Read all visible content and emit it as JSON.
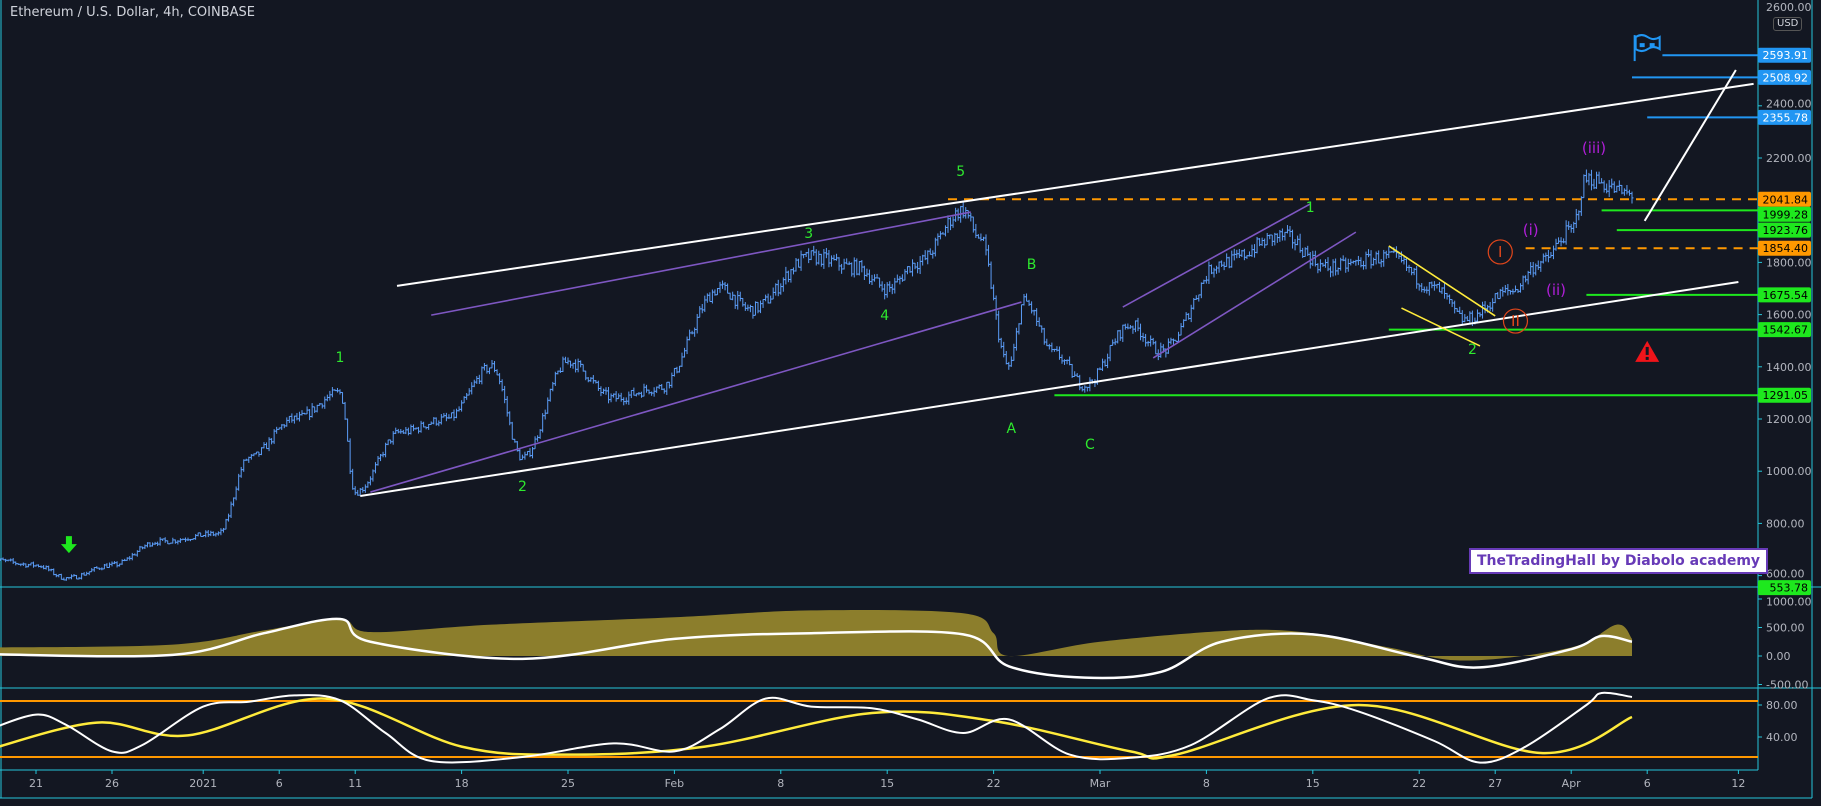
{
  "header": {
    "title": "Ethereum / U.S. Dollar, 4h, COINBASE",
    "currency": "USD"
  },
  "watermark": "TheTradingHall by Diabolo academy",
  "colors": {
    "background": "#131722",
    "candles": "#5b9cf6",
    "border": "#26c6da",
    "green": "#1ee81e",
    "blue": "#2196f3",
    "orange": "#ff9800",
    "purple": "#7e57c2",
    "yellow": "#ffeb3b",
    "wave_purple": "#b01fd8",
    "wave_green": "#2ee82e",
    "circle_red": "#e0461b",
    "olive": "#8c7e2c"
  },
  "chart_data": [
    {
      "type": "candlestick",
      "title": "Ethereum / U.S. Dollar, 4h, COINBASE",
      "yaxis": {
        "ticks": [
          600,
          800,
          1000,
          1200,
          1400,
          1600,
          1800,
          2200,
          2400
        ],
        "tick_labels": [
          "600.00",
          "800.00",
          "1000.00",
          "1200.00",
          "1400.00",
          "1600.00",
          "1800.00",
          "2200.00",
          "2400.00"
        ],
        "top_label": "2600.00"
      },
      "xaxis": {
        "ticks": [
          {
            "date": "2020-12-21",
            "label": "21"
          },
          {
            "date": "2020-12-26",
            "label": "26"
          },
          {
            "date": "2021-01-01",
            "label": "2021"
          },
          {
            "date": "2021-01-06",
            "label": "6"
          },
          {
            "date": "2021-01-11",
            "label": "11"
          },
          {
            "date": "2021-01-18",
            "label": "18"
          },
          {
            "date": "2021-01-25",
            "label": "25"
          },
          {
            "date": "2021-02-01",
            "label": "Feb"
          },
          {
            "date": "2021-02-08",
            "label": "8"
          },
          {
            "date": "2021-02-15",
            "label": "15"
          },
          {
            "date": "2021-02-22",
            "label": "22"
          },
          {
            "date": "2021-03-01",
            "label": "Mar"
          },
          {
            "date": "2021-03-08",
            "label": "8"
          },
          {
            "date": "2021-03-15",
            "label": "15"
          },
          {
            "date": "2021-03-22",
            "label": "22"
          },
          {
            "date": "2021-03-27",
            "label": "27"
          },
          {
            "date": "2021-04-01",
            "label": "Apr"
          },
          {
            "date": "2021-04-06",
            "label": "6"
          },
          {
            "date": "2021-04-12",
            "label": "12"
          }
        ]
      },
      "price_path": [
        [
          "2020-12-18",
          660
        ],
        [
          "2020-12-21",
          640
        ],
        [
          "2020-12-23",
          590
        ],
        [
          "2020-12-26",
          640
        ],
        [
          "2020-12-29",
          730
        ],
        [
          "2021-01-02",
          760
        ],
        [
          "2021-01-04",
          1050
        ],
        [
          "2021-01-07",
          1200
        ],
        [
          "2021-01-10",
          1300
        ],
        [
          "2021-01-11",
          920
        ],
        [
          "2021-01-14",
          1150
        ],
        [
          "2021-01-17",
          1200
        ],
        [
          "2021-01-20",
          1400
        ],
        [
          "2021-01-22",
          1050
        ],
        [
          "2021-01-25",
          1420
        ],
        [
          "2021-01-28",
          1280
        ],
        [
          "2021-01-31",
          1320
        ],
        [
          "2021-02-04",
          1700
        ],
        [
          "2021-02-06",
          1620
        ],
        [
          "2021-02-10",
          1820
        ],
        [
          "2021-02-13",
          1780
        ],
        [
          "2021-02-15",
          1700
        ],
        [
          "2021-02-17",
          1800
        ],
        [
          "2021-02-20",
          2000
        ],
        [
          "2021-02-21",
          1900
        ],
        [
          "2021-02-23",
          1400
        ],
        [
          "2021-02-24",
          1650
        ],
        [
          "2021-02-26",
          1450
        ],
        [
          "2021-02-28",
          1330
        ],
        [
          "2021-03-03",
          1560
        ],
        [
          "2021-03-05",
          1460
        ],
        [
          "2021-03-09",
          1800
        ],
        [
          "2021-03-13",
          1900
        ],
        [
          "2021-03-16",
          1780
        ],
        [
          "2021-03-20",
          1820
        ],
        [
          "2021-03-23",
          1700
        ],
        [
          "2021-03-25",
          1580
        ],
        [
          "2021-03-28",
          1690
        ],
        [
          "2021-03-30",
          1800
        ],
        [
          "2021-04-01",
          1920
        ],
        [
          "2021-04-02",
          2120
        ],
        [
          "2021-04-05",
          2060
        ]
      ]
    },
    {
      "type": "area",
      "yaxis": {
        "ticks": [
          1000,
          500,
          0,
          -500
        ],
        "tick_labels": [
          "1000.00",
          "500.00",
          "0.00",
          "-500.00"
        ]
      },
      "area_series": [
        [
          "2020-12-18",
          150
        ],
        [
          "2020-12-30",
          200
        ],
        [
          "2021-01-05",
          450
        ],
        [
          "2021-01-10",
          650
        ],
        [
          "2021-01-12",
          420
        ],
        [
          "2021-01-20",
          550
        ],
        [
          "2021-02-01",
          680
        ],
        [
          "2021-02-10",
          800
        ],
        [
          "2021-02-20",
          750
        ],
        [
          "2021-02-22",
          400
        ],
        [
          "2021-02-23",
          0
        ],
        [
          "2021-03-01",
          250
        ],
        [
          "2021-03-10",
          450
        ],
        [
          "2021-03-15",
          400
        ],
        [
          "2021-03-20",
          150
        ],
        [
          "2021-03-25",
          -80
        ],
        [
          "2021-04-01",
          150
        ],
        [
          "2021-04-04",
          550
        ],
        [
          "2021-04-05",
          300
        ]
      ],
      "line_series": [
        [
          "2020-12-18",
          30
        ],
        [
          "2020-12-30",
          20
        ],
        [
          "2021-01-05",
          400
        ],
        [
          "2021-01-10",
          650
        ],
        [
          "2021-01-12",
          250
        ],
        [
          "2021-01-22",
          -50
        ],
        [
          "2021-02-01",
          300
        ],
        [
          "2021-02-10",
          400
        ],
        [
          "2021-02-20",
          380
        ],
        [
          "2021-02-23",
          -180
        ],
        [
          "2021-02-28",
          -380
        ],
        [
          "2021-03-05",
          -280
        ],
        [
          "2021-03-09",
          250
        ],
        [
          "2021-03-15",
          380
        ],
        [
          "2021-03-22",
          -20
        ],
        [
          "2021-03-26",
          -200
        ],
        [
          "2021-04-01",
          120
        ],
        [
          "2021-04-03",
          350
        ],
        [
          "2021-04-05",
          250
        ]
      ]
    },
    {
      "type": "line",
      "yaxis": {
        "ticks": [
          80,
          40
        ],
        "tick_labels": [
          "80.00",
          "40.00"
        ],
        "bands": [
          85,
          15
        ]
      },
      "white_series": [
        [
          "2020-12-18",
          50
        ],
        [
          "2020-12-21",
          68
        ],
        [
          "2020-12-23",
          55
        ],
        [
          "2020-12-26",
          22
        ],
        [
          "2020-12-28",
          30
        ],
        [
          "2021-01-01",
          78
        ],
        [
          "2021-01-04",
          84
        ],
        [
          "2021-01-07",
          92
        ],
        [
          "2021-01-10",
          86
        ],
        [
          "2021-01-13",
          45
        ],
        [
          "2021-01-16",
          10
        ],
        [
          "2021-01-22",
          15
        ],
        [
          "2021-01-28",
          32
        ],
        [
          "2021-02-01",
          22
        ],
        [
          "2021-02-04",
          50
        ],
        [
          "2021-02-07",
          88
        ],
        [
          "2021-02-10",
          78
        ],
        [
          "2021-02-14",
          76
        ],
        [
          "2021-02-17",
          62
        ],
        [
          "2021-02-20",
          45
        ],
        [
          "2021-02-23",
          62
        ],
        [
          "2021-02-27",
          18
        ],
        [
          "2021-03-03",
          14
        ],
        [
          "2021-03-07",
          30
        ],
        [
          "2021-03-12",
          88
        ],
        [
          "2021-03-15",
          86
        ],
        [
          "2021-03-18",
          72
        ],
        [
          "2021-03-23",
          35
        ],
        [
          "2021-03-26",
          8
        ],
        [
          "2021-03-29",
          28
        ],
        [
          "2021-04-02",
          80
        ],
        [
          "2021-04-03",
          95
        ],
        [
          "2021-04-05",
          90
        ]
      ],
      "yellow_series": [
        [
          "2020-12-18",
          25
        ],
        [
          "2020-12-25",
          58
        ],
        [
          "2020-12-31",
          42
        ],
        [
          "2021-01-09",
          88
        ],
        [
          "2021-01-18",
          28
        ],
        [
          "2021-01-25",
          18
        ],
        [
          "2021-02-03",
          28
        ],
        [
          "2021-02-14",
          70
        ],
        [
          "2021-02-22",
          60
        ],
        [
          "2021-03-03",
          22
        ],
        [
          "2021-03-06",
          18
        ],
        [
          "2021-03-18",
          80
        ],
        [
          "2021-03-30",
          20
        ],
        [
          "2021-04-05",
          65
        ]
      ]
    }
  ],
  "price_labels": [
    {
      "value": "2593.91",
      "price": 2593.91,
      "kind": "blue",
      "from": "2021-04-07"
    },
    {
      "value": "2508.92",
      "price": 2508.92,
      "kind": "blue",
      "from": "2021-04-05"
    },
    {
      "value": "2355.78",
      "price": 2355.78,
      "kind": "blue",
      "from": "2021-04-06"
    },
    {
      "value": "2041.84",
      "price": 2041.84,
      "kind": "orange",
      "from": "2021-02-19"
    },
    {
      "value": "1999.28",
      "price": 1999.28,
      "kind": "green",
      "from": "2021-04-03"
    },
    {
      "value": "1923.76",
      "price": 1923.76,
      "kind": "green",
      "from": "2021-04-04"
    },
    {
      "value": "1854.40",
      "price": 1854.4,
      "kind": "orange",
      "from": "2021-03-29"
    },
    {
      "value": "1675.54",
      "price": 1675.54,
      "kind": "green",
      "from": "2021-04-02"
    },
    {
      "value": "1542.67",
      "price": 1542.67,
      "kind": "green",
      "from": "2021-03-20"
    },
    {
      "value": "1291.05",
      "price": 1291.05,
      "kind": "green",
      "from": "2021-02-26"
    },
    {
      "value": "553.78",
      "price": 553.78,
      "kind": "green",
      "from": null
    }
  ],
  "trend_lines": [
    {
      "kind": "white",
      "from": [
        "2021-01-13T18:00",
        1710
      ],
      "to": [
        "2021-04-13",
        2484
      ]
    },
    {
      "kind": "white",
      "from": [
        "2021-01-11T08:00",
        905
      ],
      "to": [
        "2021-04-12",
        1725
      ]
    },
    {
      "kind": "white",
      "from": [
        "2021-04-05T20:00",
        1959
      ],
      "to": [
        "2021-04-11T20:00",
        2537
      ]
    },
    {
      "kind": "purple",
      "from": [
        "2021-01-16",
        1598
      ],
      "to": [
        "2021-02-20T12:00",
        1993
      ]
    },
    {
      "kind": "purple",
      "from": [
        "2021-01-12",
        920
      ],
      "to": [
        "2021-02-23T20:00",
        1648
      ]
    },
    {
      "kind": "purple",
      "from": [
        "2021-03-02T12:00",
        1629
      ],
      "to": [
        "2021-03-14T20:00",
        2024
      ]
    },
    {
      "kind": "purple",
      "from": [
        "2021-03-04T12:00",
        1434
      ],
      "to": [
        "2021-03-17T20:00",
        1916
      ]
    },
    {
      "kind": "yellow",
      "from": [
        "2021-03-20",
        1863
      ],
      "to": [
        "2021-03-27",
        1595
      ]
    },
    {
      "kind": "yellow",
      "from": [
        "2021-03-20T20:00",
        1625
      ],
      "to": [
        "2021-03-26",
        1480
      ]
    }
  ],
  "wave_labels": [
    {
      "text": "1",
      "date": "2021-01-10",
      "price": 1418,
      "kind": "green"
    },
    {
      "text": "2",
      "date": "2021-01-22",
      "price": 924,
      "kind": "green"
    },
    {
      "text": "3",
      "date": "2021-02-09T20:00",
      "price": 1893,
      "kind": "green"
    },
    {
      "text": "4",
      "date": "2021-02-14T20:00",
      "price": 1579,
      "kind": "green"
    },
    {
      "text": "5",
      "date": "2021-02-19T20:00",
      "price": 2131,
      "kind": "green"
    },
    {
      "text": "A",
      "date": "2021-02-23T04:00",
      "price": 1146,
      "kind": "green"
    },
    {
      "text": "B",
      "date": "2021-02-24T12:00",
      "price": 1775,
      "kind": "green"
    },
    {
      "text": "C",
      "date": "2021-02-28T08:00",
      "price": 1085,
      "kind": "green"
    },
    {
      "text": "1",
      "date": "2021-03-14T20:00",
      "price": 1993,
      "kind": "green"
    },
    {
      "text": "2",
      "date": "2021-03-25T12:00",
      "price": 1449,
      "kind": "green"
    },
    {
      "text": "I",
      "date": "2021-03-27T08:00",
      "price": 1821,
      "kind": "circle"
    },
    {
      "text": "II",
      "date": "2021-03-28T08:00",
      "price": 1556,
      "kind": "circle"
    },
    {
      "text": "(i)",
      "date": "2021-03-29T08:00",
      "price": 1905,
      "kind": "purple"
    },
    {
      "text": "(ii)",
      "date": "2021-03-31",
      "price": 1675,
      "kind": "purple"
    },
    {
      "text": "(iii)",
      "date": "2021-04-02T12:00",
      "price": 2219,
      "kind": "purple"
    }
  ],
  "icons": [
    {
      "name": "arrow-down-icon",
      "date": "2020-12-23T04:00",
      "price": 713
    },
    {
      "name": "flag-icon",
      "date": "2021-04-05T20:00",
      "price": 2625
    },
    {
      "name": "warning-icon",
      "date": "2021-04-06",
      "price": 1457
    }
  ]
}
